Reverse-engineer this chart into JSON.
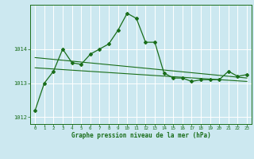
{
  "title": "Graphe pression niveau de la mer (hPa)",
  "background_color": "#cce8f0",
  "grid_color": "#ffffff",
  "line_color": "#1a6e1a",
  "xlim": [
    -0.5,
    23.5
  ],
  "ylim": [
    1011.8,
    1015.3
  ],
  "yticks": [
    1012,
    1013,
    1014
  ],
  "xticks": [
    0,
    1,
    2,
    3,
    4,
    5,
    6,
    7,
    8,
    9,
    10,
    11,
    12,
    13,
    14,
    15,
    16,
    17,
    18,
    19,
    20,
    21,
    22,
    23
  ],
  "series1": {
    "x": [
      0,
      1,
      2,
      3,
      4,
      5,
      6,
      7,
      8,
      9,
      10,
      11,
      12,
      13,
      14,
      15,
      16,
      17,
      18,
      19,
      20,
      21,
      22,
      23
    ],
    "y": [
      1012.2,
      1013.0,
      1013.35,
      1014.0,
      1013.6,
      1013.55,
      1013.85,
      1014.0,
      1014.15,
      1014.55,
      1015.05,
      1014.9,
      1014.2,
      1014.2,
      1013.3,
      1013.15,
      1013.15,
      1013.05,
      1013.1,
      1013.1,
      1013.1,
      1013.35,
      1013.2,
      1013.25
    ]
  },
  "series2": {
    "x": [
      0,
      23
    ],
    "y": [
      1013.75,
      1013.15
    ]
  },
  "series3": {
    "x": [
      0,
      23
    ],
    "y": [
      1013.45,
      1013.05
    ]
  }
}
